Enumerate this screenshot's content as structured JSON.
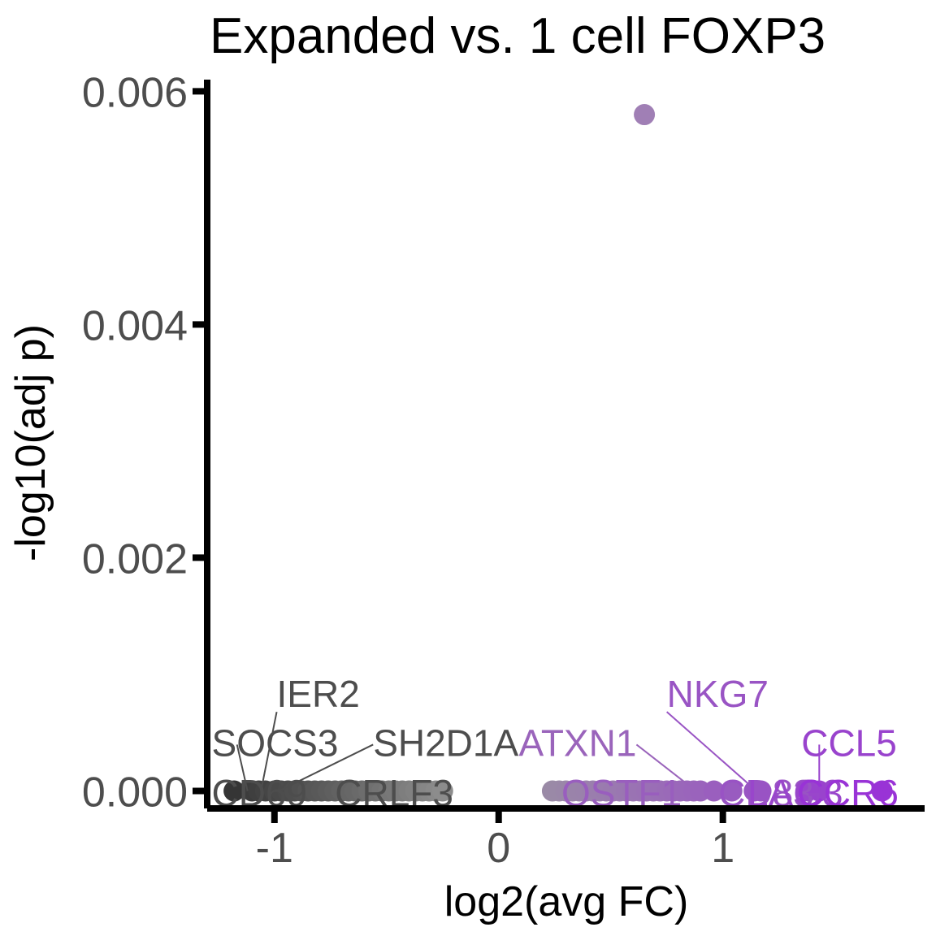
{
  "chart_data": {
    "type": "scatter",
    "title": "Expanded vs. 1 cell FOXP3",
    "xlabel": "log2(avg FC)",
    "ylabel": "-log10(adj p)",
    "xlim": [
      -1.3,
      1.9
    ],
    "ylim": [
      -0.00015,
      0.0061
    ],
    "x_ticks": [
      -1,
      0,
      1
    ],
    "x_tick_labels": [
      "-1",
      "0",
      "1"
    ],
    "y_ticks": [
      0,
      0.002,
      0.004,
      0.006
    ],
    "y_tick_labels": [
      "0.000",
      "0.002",
      "0.004",
      "0.006"
    ],
    "grid": false,
    "legend": "none",
    "colors": {
      "down_dark": "#333333",
      "down_light": "#8c8c8c",
      "up_light": "#9a8aa6",
      "up_strong": "#9933d6",
      "highlight": "#a07fb5",
      "axis": "#000000"
    },
    "points": [
      {
        "x": -1.18,
        "y": 0
      },
      {
        "x": -1.1,
        "y": 0
      },
      {
        "x": -1.07,
        "y": 0
      },
      {
        "x": -1.04,
        "y": 0
      },
      {
        "x": -1.0,
        "y": 0
      },
      {
        "x": -0.97,
        "y": 0
      },
      {
        "x": -0.94,
        "y": 0
      },
      {
        "x": -0.91,
        "y": 0
      },
      {
        "x": -0.88,
        "y": 0
      },
      {
        "x": -0.85,
        "y": 0
      },
      {
        "x": -0.82,
        "y": 0
      },
      {
        "x": -0.79,
        "y": 0
      },
      {
        "x": -0.76,
        "y": 0
      },
      {
        "x": -0.73,
        "y": 0
      },
      {
        "x": -0.7,
        "y": 0
      },
      {
        "x": -0.67,
        "y": 0
      },
      {
        "x": -0.64,
        "y": 0
      },
      {
        "x": -0.61,
        "y": 0
      },
      {
        "x": -0.58,
        "y": 0
      },
      {
        "x": -0.55,
        "y": 0
      },
      {
        "x": -0.52,
        "y": 0
      },
      {
        "x": -0.49,
        "y": 0
      },
      {
        "x": -0.46,
        "y": 0
      },
      {
        "x": -0.43,
        "y": 0
      },
      {
        "x": -0.4,
        "y": 0
      },
      {
        "x": -0.37,
        "y": 0
      },
      {
        "x": -0.34,
        "y": 0
      },
      {
        "x": -0.31,
        "y": 0
      },
      {
        "x": -0.28,
        "y": 0
      },
      {
        "x": -0.25,
        "y": 0
      },
      {
        "x": 0.24,
        "y": 0
      },
      {
        "x": 0.27,
        "y": 0
      },
      {
        "x": 0.3,
        "y": 0
      },
      {
        "x": 0.33,
        "y": 0
      },
      {
        "x": 0.36,
        "y": 0
      },
      {
        "x": 0.39,
        "y": 0
      },
      {
        "x": 0.42,
        "y": 0
      },
      {
        "x": 0.45,
        "y": 0
      },
      {
        "x": 0.48,
        "y": 0
      },
      {
        "x": 0.51,
        "y": 0
      },
      {
        "x": 0.54,
        "y": 0
      },
      {
        "x": 0.57,
        "y": 0
      },
      {
        "x": 0.6,
        "y": 0
      },
      {
        "x": 0.63,
        "y": 0
      },
      {
        "x": 0.66,
        "y": 0
      },
      {
        "x": 0.69,
        "y": 0
      },
      {
        "x": 0.72,
        "y": 0
      },
      {
        "x": 0.75,
        "y": 0
      },
      {
        "x": 0.78,
        "y": 0
      },
      {
        "x": 0.81,
        "y": 0
      },
      {
        "x": 0.84,
        "y": 0
      },
      {
        "x": 0.87,
        "y": 0
      },
      {
        "x": 0.9,
        "y": 0
      },
      {
        "x": 0.96,
        "y": 0
      },
      {
        "x": 1.04,
        "y": 0
      },
      {
        "x": 1.14,
        "y": 0
      },
      {
        "x": 1.17,
        "y": 0
      },
      {
        "x": 1.38,
        "y": 0
      },
      {
        "x": 1.43,
        "y": 0
      },
      {
        "x": 1.71,
        "y": 0
      },
      {
        "x": 0.65,
        "y": 0.0058
      }
    ],
    "labels": [
      {
        "text": "IER2",
        "x": -1.06,
        "y": 0,
        "lx": -0.99,
        "ly": 0.00072,
        "side": "down"
      },
      {
        "text": "SOCS3",
        "x": -1.12,
        "y": 0,
        "lx": -1.28,
        "ly": 0.0003,
        "side": "down"
      },
      {
        "text": "SH2D1A",
        "x": -0.98,
        "y": 0,
        "lx": -0.56,
        "ly": 0.0003,
        "side": "down"
      },
      {
        "text": "CD69",
        "x": -1.18,
        "y": 0,
        "lx": -1.28,
        "ly": -0.00013,
        "side": "down"
      },
      {
        "text": "CRLF3",
        "x": -0.8,
        "y": 0,
        "lx": -0.73,
        "ly": -0.00013,
        "side": "down"
      },
      {
        "text": "ATXN1",
        "x": 0.88,
        "y": 0,
        "lx": 0.09,
        "ly": 0.0003,
        "side": "up"
      },
      {
        "text": "NKG7",
        "x": 1.15,
        "y": 0,
        "lx": 0.75,
        "ly": 0.00072,
        "side": "up"
      },
      {
        "text": "CCL5",
        "x": 1.43,
        "y": 0,
        "lx": 1.35,
        "ly": 0.0003,
        "side": "up"
      },
      {
        "text": "OSTF1",
        "x": 0.98,
        "y": 0,
        "lx": 0.28,
        "ly": -0.00013,
        "side": "up"
      },
      {
        "text": "CD83",
        "x": 1.17,
        "y": 0,
        "lx": 0.98,
        "ly": -0.00013,
        "side": "up"
      },
      {
        "text": "LAG3",
        "x": 1.38,
        "y": 0,
        "lx": 1.11,
        "ly": -0.00013,
        "side": "up"
      },
      {
        "text": "CCR6",
        "x": 1.71,
        "y": 0,
        "lx": 1.33,
        "ly": -0.00013,
        "side": "up"
      }
    ]
  }
}
